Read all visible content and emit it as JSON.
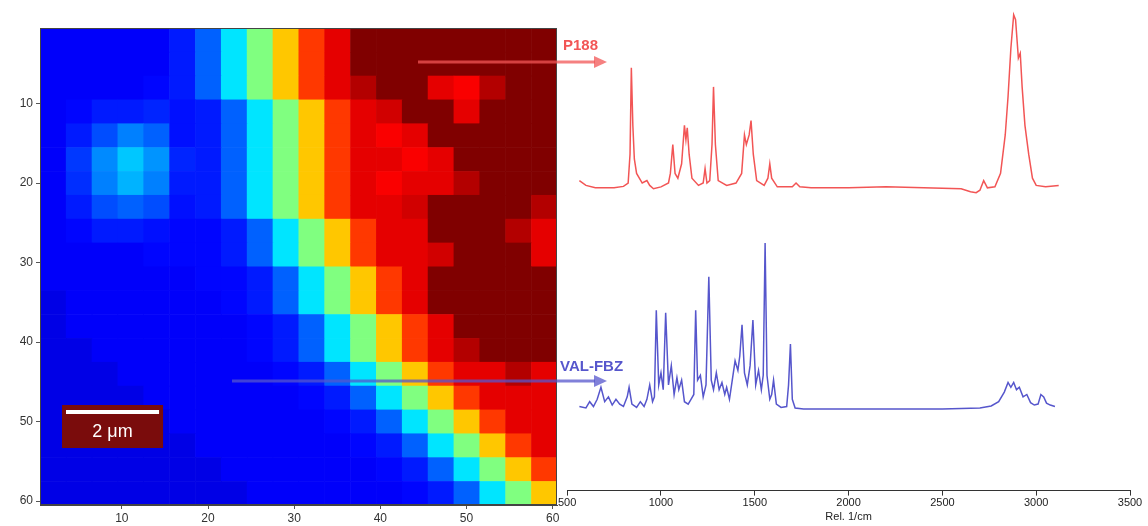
{
  "chart_data": [
    {
      "type": "heatmap",
      "xlim": [
        0.5,
        60.5
      ],
      "ylim": [
        60.5,
        0.5
      ],
      "xticks": [
        10,
        20,
        30,
        40,
        50,
        60
      ],
      "yticks": [
        10,
        20,
        30,
        40,
        50,
        60
      ],
      "grid": false,
      "x": [
        2,
        5,
        8,
        11,
        14,
        17,
        20,
        23,
        26,
        29,
        32,
        35,
        38,
        41,
        44,
        47,
        50,
        53,
        56,
        59
      ],
      "y": [
        2,
        5,
        8,
        11,
        14,
        17,
        20,
        23,
        26,
        29,
        32,
        35,
        38,
        41,
        44,
        47,
        50,
        53,
        56,
        59
      ],
      "zlim": [
        0,
        1
      ],
      "z": [
        [
          0.12,
          0.12,
          0.12,
          0.12,
          0.12,
          0.15,
          0.22,
          0.35,
          0.5,
          0.68,
          0.82,
          0.9,
          1,
          1,
          1,
          1,
          1,
          1,
          1,
          1
        ],
        [
          0.12,
          0.12,
          0.12,
          0.12,
          0.12,
          0.15,
          0.22,
          0.35,
          0.5,
          0.68,
          0.82,
          0.9,
          1,
          1,
          1,
          1,
          1,
          1,
          1,
          1
        ],
        [
          0.12,
          0.12,
          0.12,
          0.12,
          0.13,
          0.15,
          0.22,
          0.35,
          0.5,
          0.68,
          0.82,
          0.9,
          0.95,
          1,
          1,
          0.9,
          0.88,
          0.95,
          1,
          1
        ],
        [
          0.12,
          0.13,
          0.15,
          0.15,
          0.16,
          0.14,
          0.15,
          0.22,
          0.35,
          0.5,
          0.68,
          0.82,
          0.9,
          0.92,
          1,
          1,
          0.9,
          1,
          1,
          1
        ],
        [
          0.12,
          0.15,
          0.2,
          0.25,
          0.22,
          0.14,
          0.15,
          0.22,
          0.35,
          0.5,
          0.68,
          0.82,
          0.9,
          0.88,
          0.9,
          1,
          1,
          1,
          1,
          1
        ],
        [
          0.12,
          0.18,
          0.26,
          0.32,
          0.27,
          0.16,
          0.15,
          0.22,
          0.35,
          0.5,
          0.68,
          0.82,
          0.9,
          0.9,
          0.88,
          0.9,
          1,
          1,
          1,
          1
        ],
        [
          0.12,
          0.17,
          0.25,
          0.3,
          0.25,
          0.15,
          0.15,
          0.22,
          0.35,
          0.5,
          0.68,
          0.82,
          0.9,
          0.88,
          0.9,
          0.9,
          0.95,
          1,
          1,
          1
        ],
        [
          0.12,
          0.15,
          0.2,
          0.22,
          0.2,
          0.14,
          0.15,
          0.22,
          0.35,
          0.5,
          0.68,
          0.82,
          0.9,
          0.9,
          0.92,
          1,
          1,
          1,
          1,
          0.95
        ],
        [
          0.12,
          0.13,
          0.15,
          0.15,
          0.14,
          0.13,
          0.13,
          0.15,
          0.22,
          0.35,
          0.5,
          0.68,
          0.82,
          0.9,
          0.9,
          1,
          1,
          1,
          0.95,
          0.9
        ],
        [
          0.12,
          0.12,
          0.12,
          0.12,
          0.13,
          0.13,
          0.13,
          0.15,
          0.22,
          0.35,
          0.5,
          0.68,
          0.82,
          0.9,
          0.9,
          0.92,
          1,
          1,
          1,
          0.9
        ],
        [
          0.12,
          0.12,
          0.12,
          0.12,
          0.12,
          0.12,
          0.13,
          0.13,
          0.15,
          0.22,
          0.35,
          0.5,
          0.68,
          0.82,
          0.9,
          1,
          1,
          1,
          1,
          1
        ],
        [
          0.1,
          0.12,
          0.12,
          0.12,
          0.12,
          0.12,
          0.12,
          0.13,
          0.15,
          0.22,
          0.35,
          0.5,
          0.68,
          0.82,
          0.9,
          1,
          1,
          1,
          1,
          1
        ],
        [
          0.1,
          0.12,
          0.12,
          0.12,
          0.12,
          0.12,
          0.12,
          0.12,
          0.13,
          0.15,
          0.22,
          0.35,
          0.5,
          0.68,
          0.82,
          0.9,
          1,
          1,
          1,
          1
        ],
        [
          0.1,
          0.1,
          0.12,
          0.12,
          0.12,
          0.12,
          0.12,
          0.12,
          0.13,
          0.15,
          0.22,
          0.35,
          0.5,
          0.68,
          0.82,
          0.9,
          0.95,
          1,
          1,
          1
        ],
        [
          0.1,
          0.1,
          0.1,
          0.12,
          0.12,
          0.12,
          0.12,
          0.12,
          0.12,
          0.13,
          0.15,
          0.22,
          0.35,
          0.5,
          0.68,
          0.82,
          0.9,
          0.9,
          0.95,
          0.9
        ],
        [
          0.1,
          0.1,
          0.1,
          0.1,
          0.12,
          0.12,
          0.12,
          0.12,
          0.12,
          0.12,
          0.13,
          0.15,
          0.22,
          0.35,
          0.5,
          0.68,
          0.82,
          0.9,
          0.9,
          0.9
        ],
        [
          0.1,
          0.1,
          0.1,
          0.1,
          0.1,
          0.12,
          0.12,
          0.12,
          0.12,
          0.12,
          0.12,
          0.13,
          0.15,
          0.22,
          0.35,
          0.5,
          0.68,
          0.82,
          0.9,
          0.9
        ],
        [
          0.1,
          0.1,
          0.1,
          0.1,
          0.1,
          0.1,
          0.12,
          0.12,
          0.12,
          0.12,
          0.12,
          0.12,
          0.13,
          0.15,
          0.22,
          0.35,
          0.5,
          0.68,
          0.82,
          0.9
        ],
        [
          0.1,
          0.1,
          0.1,
          0.1,
          0.1,
          0.1,
          0.1,
          0.12,
          0.12,
          0.12,
          0.12,
          0.12,
          0.12,
          0.13,
          0.15,
          0.22,
          0.35,
          0.5,
          0.68,
          0.82
        ],
        [
          0.1,
          0.1,
          0.1,
          0.1,
          0.1,
          0.1,
          0.1,
          0.1,
          0.12,
          0.12,
          0.12,
          0.12,
          0.12,
          0.12,
          0.13,
          0.15,
          0.22,
          0.35,
          0.5,
          0.68
        ]
      ],
      "scale_bar": {
        "label": "2 μm",
        "length": 10.8
      }
    },
    {
      "type": "line",
      "x_label": "Rel. 1/cm",
      "xlim": [
        500,
        3500
      ],
      "xticks": [
        500,
        1000,
        1500,
        2000,
        2500,
        3000,
        3500
      ],
      "ylim": [
        0,
        100
      ],
      "tick_labels": "x",
      "grid": false,
      "series": [
        {
          "name": "P188",
          "color": "#f25555",
          "x": [
            565,
            600,
            650,
            700,
            750,
            800,
            825,
            835,
            842,
            850,
            858,
            870,
            900,
            925,
            940,
            960,
            1000,
            1040,
            1050,
            1063,
            1075,
            1090,
            1110,
            1125,
            1133,
            1140,
            1150,
            1165,
            1200,
            1225,
            1235,
            1245,
            1260,
            1272,
            1280,
            1290,
            1305,
            1350,
            1400,
            1430,
            1445,
            1455,
            1470,
            1480,
            1492,
            1510,
            1550,
            1570,
            1580,
            1590,
            1620,
            1700,
            1720,
            1740,
            1800,
            2000,
            2200,
            2400,
            2600,
            2650,
            2680,
            2700,
            2720,
            2740,
            2780,
            2810,
            2835,
            2850,
            2865,
            2880,
            2890,
            2905,
            2915,
            2925,
            2940,
            2960,
            2980,
            3000,
            3050,
            3120
          ],
          "values": [
            64.5,
            63.5,
            63,
            63,
            63,
            63.3,
            64,
            70,
            88,
            76,
            69,
            66,
            64,
            64.5,
            63.5,
            62.8,
            63.2,
            64,
            66,
            72,
            66,
            65,
            68,
            76,
            73,
            75.5,
            70,
            65,
            63.5,
            64,
            67,
            64,
            64.5,
            72,
            84,
            72,
            64.5,
            63.5,
            64,
            66,
            74,
            72,
            74,
            77,
            70,
            64.5,
            63.5,
            65,
            68,
            65,
            63.2,
            63.2,
            64,
            63.2,
            63,
            63,
            63.2,
            63,
            62.8,
            62.2,
            62,
            62.5,
            64.5,
            63,
            63.2,
            66,
            74,
            82,
            92,
            99,
            98,
            90,
            91,
            84,
            76,
            70,
            65,
            63.5,
            63.2,
            63.5
          ]
        },
        {
          "name": "VAL-FBZ",
          "color": "#5656cc",
          "x": [
            565,
            600,
            620,
            640,
            660,
            680,
            700,
            720,
            740,
            760,
            780,
            800,
            820,
            830,
            845,
            870,
            890,
            910,
            925,
            940,
            955,
            965,
            975,
            988,
            1000,
            1012,
            1025,
            1040,
            1055,
            1070,
            1085,
            1095,
            1110,
            1125,
            1145,
            1160,
            1175,
            1185,
            1195,
            1210,
            1225,
            1240,
            1255,
            1268,
            1280,
            1295,
            1310,
            1325,
            1340,
            1350,
            1365,
            1380,
            1395,
            1410,
            1420,
            1432,
            1445,
            1460,
            1475,
            1490,
            1505,
            1520,
            1535,
            1545,
            1555,
            1565,
            1580,
            1590,
            1600,
            1615,
            1640,
            1670,
            1680,
            1690,
            1700,
            1715,
            1760,
            1900,
            2200,
            2500,
            2700,
            2760,
            2800,
            2830,
            2850,
            2865,
            2880,
            2895,
            2910,
            2930,
            2950,
            2970,
            2990,
            3010,
            3025,
            3040,
            3055,
            3075,
            3100
          ],
          "values": [
            17.5,
            17.2,
            18.5,
            17.5,
            19,
            21.5,
            18.5,
            19.5,
            17.8,
            19,
            18,
            17.5,
            19.5,
            21.5,
            18,
            17.3,
            18.5,
            17.5,
            19,
            22,
            18.5,
            19.5,
            37.5,
            22,
            24.5,
            21,
            37,
            22,
            26,
            20,
            23.5,
            21,
            23,
            18.5,
            18,
            19,
            20,
            37.5,
            23,
            24,
            19.5,
            22,
            44.5,
            23,
            21,
            24.5,
            21,
            22.5,
            20,
            21.5,
            19,
            23,
            27,
            25,
            28,
            34.5,
            24.5,
            22,
            26,
            35.5,
            22,
            25,
            21,
            24,
            51.5,
            24,
            19,
            20,
            23,
            18,
            17.3,
            17.5,
            22,
            30.5,
            19,
            17.2,
            17,
            17,
            17,
            17,
            17.2,
            17.6,
            18.5,
            20.5,
            22.5,
            21.5,
            22.5,
            21,
            21.5,
            19.5,
            20,
            18.3,
            17.8,
            18,
            20,
            19.5,
            18.2,
            17.8,
            17.5
          ]
        }
      ]
    }
  ]
}
